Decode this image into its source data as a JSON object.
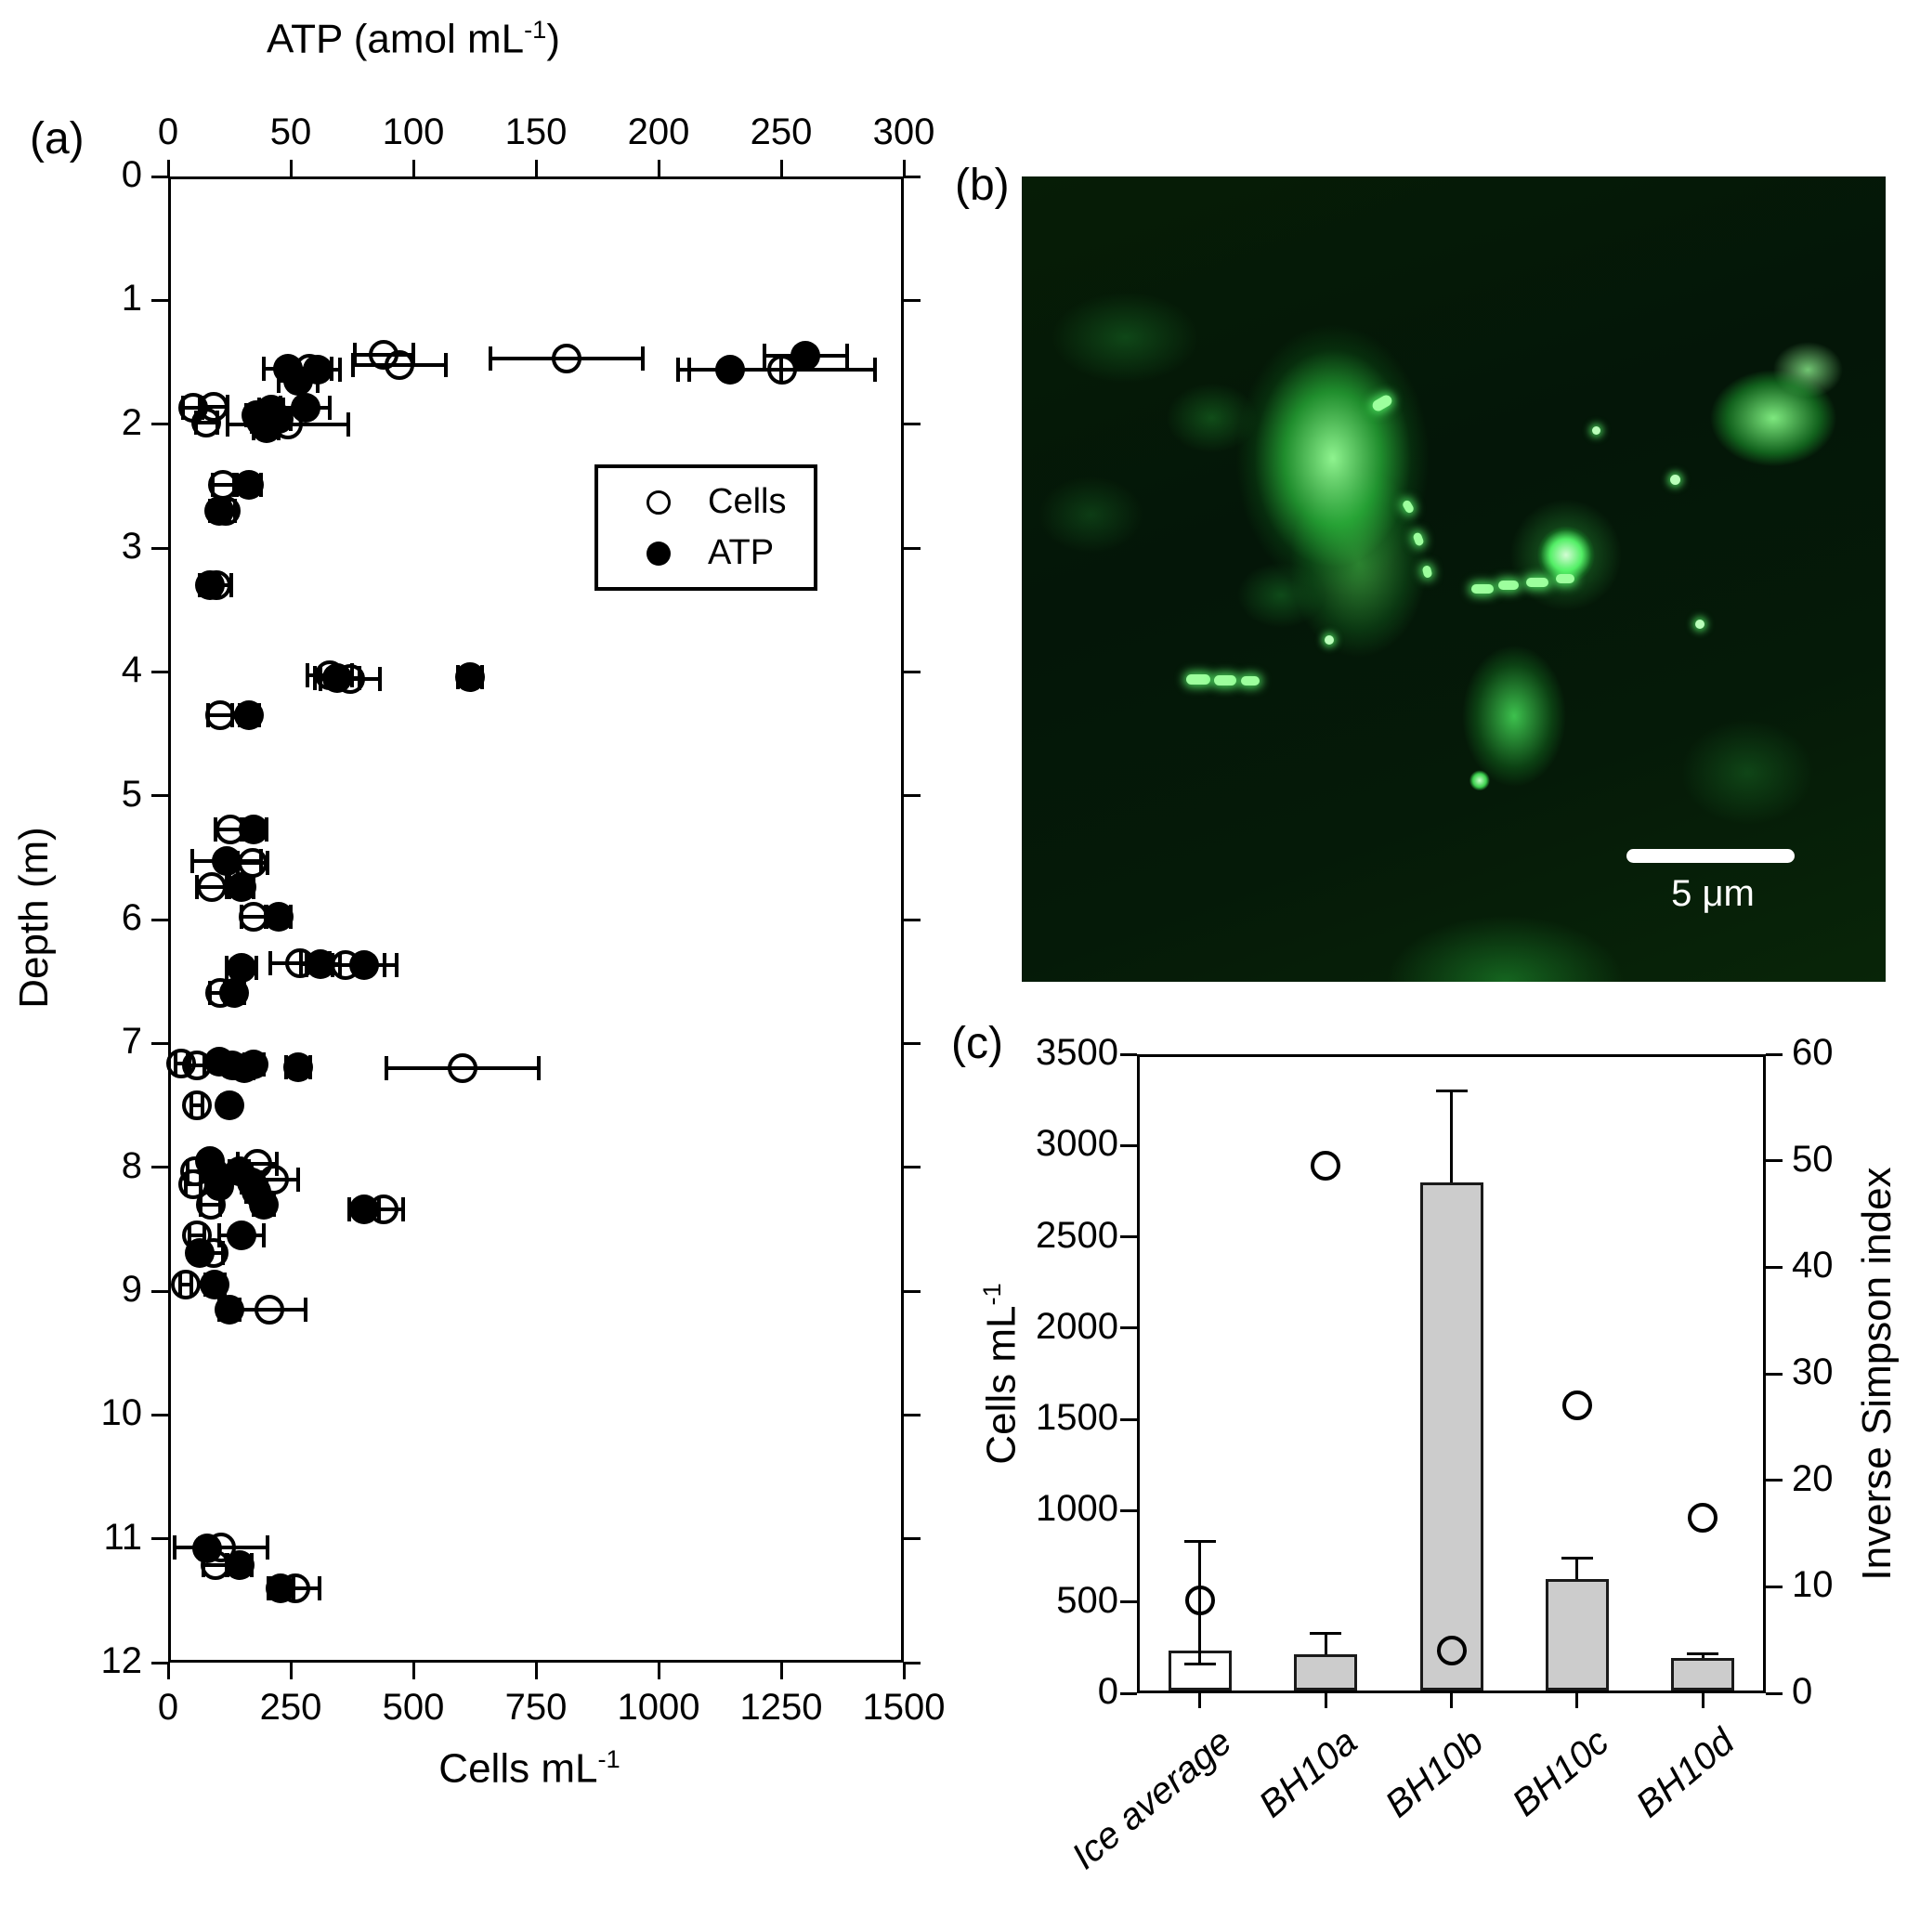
{
  "figure": {
    "panel_a": {
      "label": "(a)",
      "axis_top": {
        "pre": "ATP (amol mL",
        "sup": "-1",
        "post": ")"
      },
      "axis_bottom": {
        "pre": "Cells mL",
        "sup": "-1",
        "post": ""
      },
      "y_axis_title": "Depth (m)",
      "legend": [
        {
          "label": "Cells",
          "marker": "open-circle"
        },
        {
          "label": "ATP",
          "marker": "filled-circle"
        }
      ]
    },
    "panel_b": {
      "label": "(b)",
      "scale_bar_label": "5 μm"
    },
    "panel_c": {
      "label": "(c)",
      "axis_left": {
        "pre": "Cells mL",
        "sup": "-1",
        "post": ""
      },
      "axis_right_title": "Inverse Simpson index"
    },
    "colors": {
      "marker": "#000000",
      "bar_fill_gray": "#cccccc",
      "bar_fill_white": "#ffffff",
      "micrograph_green": "#2de05a",
      "scale_bar": "#ffffff"
    }
  },
  "chart_data": [
    {
      "id": "depth_profile",
      "type": "scatter",
      "title": "",
      "x_top_label": "ATP (amol mL^-1)",
      "x_bottom_label": "Cells mL^-1",
      "ylabel": "Depth (m)",
      "x_top_range": [
        0,
        300
      ],
      "x_bottom_range": [
        0,
        1500
      ],
      "y_range": [
        0,
        12
      ],
      "y_inverted": true,
      "grid": false,
      "x_top_ticks": [
        0,
        50,
        100,
        150,
        200,
        250,
        300
      ],
      "x_bottom_ticks": [
        0,
        250,
        500,
        750,
        1000,
        1250,
        1500
      ],
      "y_ticks": [
        0,
        1,
        2,
        3,
        4,
        5,
        6,
        7,
        8,
        9,
        10,
        11,
        12
      ],
      "legend_position": "upper-right-inside",
      "series": [
        {
          "name": "Cells",
          "marker": "open-circle",
          "x_axis": "bottom",
          "units": "cells mL^-1",
          "points_note": "[depth_m, value, x_error_halfwidth]",
          "points": [
            [
              1.55,
              288,
              45
            ],
            [
              1.44,
              440,
              60
            ],
            [
              1.52,
              472,
              95
            ],
            [
              1.47,
              812,
              155
            ],
            [
              1.56,
              1252,
              190
            ],
            [
              1.87,
              51,
              20
            ],
            [
              1.86,
              93,
              28
            ],
            [
              1.99,
              78,
              22
            ],
            [
              2.0,
              244,
              123
            ],
            [
              2.49,
              112,
              22
            ],
            [
              2.7,
              117,
              20
            ],
            [
              3.3,
              98,
              30
            ],
            [
              4.03,
              330,
              45
            ],
            [
              4.06,
              371,
              60
            ],
            [
              4.35,
              106,
              25
            ],
            [
              5.27,
              127,
              30
            ],
            [
              5.54,
              172,
              30
            ],
            [
              5.74,
              89,
              30
            ],
            [
              5.98,
              174,
              25
            ],
            [
              6.35,
              269,
              60
            ],
            [
              6.37,
              362,
              80
            ],
            [
              6.59,
              106,
              20
            ],
            [
              7.16,
              27,
              12
            ],
            [
              7.18,
              59,
              15
            ],
            [
              7.2,
              600,
              155
            ],
            [
              7.5,
              59,
              12
            ],
            [
              7.97,
              182,
              40
            ],
            [
              8.03,
              55,
              15
            ],
            [
              8.1,
              216,
              50
            ],
            [
              8.14,
              51,
              15
            ],
            [
              8.3,
              87,
              20
            ],
            [
              8.34,
              439,
              40
            ],
            [
              8.55,
              59,
              15
            ],
            [
              8.69,
              93,
              18
            ],
            [
              8.95,
              36,
              12
            ],
            [
              9.15,
              206,
              75
            ],
            [
              11.07,
              108,
              95
            ],
            [
              11.21,
              97,
              25
            ],
            [
              11.4,
              259,
              50
            ]
          ]
        },
        {
          "name": "ATP",
          "marker": "filled-circle",
          "x_axis": "top",
          "units": "amol mL^-1",
          "points_note": "[depth_m, value, x_error_halfwidth]",
          "points": [
            [
              1.55,
              49,
              10
            ],
            [
              1.65,
              53,
              8
            ],
            [
              1.56,
              61,
              9
            ],
            [
              1.56,
              229,
              21
            ],
            [
              1.45,
              260,
              17
            ],
            [
              1.93,
              36,
              4
            ],
            [
              1.98,
              38,
              4
            ],
            [
              2.03,
              40,
              5
            ],
            [
              1.88,
              42,
              5
            ],
            [
              1.96,
              45,
              5
            ],
            [
              1.87,
              56,
              10
            ],
            [
              2.49,
              33,
              5
            ],
            [
              2.7,
              21,
              4
            ],
            [
              3.3,
              17,
              4
            ],
            [
              4.05,
              69,
              9
            ],
            [
              4.04,
              123,
              5
            ],
            [
              4.35,
              33,
              4
            ],
            [
              5.27,
              35,
              5
            ],
            [
              5.53,
              24,
              14
            ],
            [
              5.74,
              30,
              5
            ],
            [
              5.98,
              45,
              5
            ],
            [
              6.39,
              30,
              6
            ],
            [
              6.36,
              62,
              8
            ],
            [
              6.37,
              80,
              13
            ],
            [
              6.59,
              27,
              4
            ],
            [
              7.15,
              21,
              3
            ],
            [
              7.18,
              26,
              3
            ],
            [
              7.2,
              31,
              4
            ],
            [
              7.17,
              35,
              4
            ],
            [
              7.19,
              53,
              5
            ],
            [
              7.5,
              25,
              3
            ],
            [
              7.95,
              17,
              2
            ],
            [
              8.05,
              19,
              2
            ],
            [
              8.15,
              21,
              3
            ],
            [
              8.03,
              29,
              4
            ],
            [
              8.12,
              34,
              4
            ],
            [
              8.2,
              36,
              4
            ],
            [
              8.3,
              39,
              4
            ],
            [
              8.34,
              80,
              6
            ],
            [
              8.55,
              30,
              9
            ],
            [
              8.69,
              13,
              2
            ],
            [
              8.95,
              19,
              4
            ],
            [
              9.15,
              25,
              4
            ],
            [
              11.08,
              16,
              3
            ],
            [
              11.21,
              29,
              5
            ],
            [
              11.4,
              46,
              5
            ]
          ]
        }
      ]
    },
    {
      "id": "borehole_summary",
      "type": "bar",
      "categories": [
        "Ice average",
        "BH10a",
        "BH10b",
        "BH10c",
        "BH10d"
      ],
      "bar_values": [
        235,
        215,
        2800,
        625,
        195
      ],
      "bar_err_plus": [
        595,
        115,
        500,
        115,
        23
      ],
      "bar_err_minus": [
        75,
        0,
        0,
        0,
        0
      ],
      "bar_fills": [
        "#ffffff",
        "#cccccc",
        "#cccccc",
        "#cccccc",
        "#cccccc"
      ],
      "circle_series_name": "Inverse Simpson index",
      "circle_values": [
        8.7,
        49.5,
        4.0,
        27.0,
        16.5
      ],
      "ylabel_left": "Cells mL^-1",
      "ylabel_right": "Inverse Simpson index",
      "ylim_left": [
        0,
        3500
      ],
      "ylim_right": [
        0,
        60
      ],
      "yticks_left": [
        0,
        500,
        1000,
        1500,
        2000,
        2500,
        3000,
        3500
      ],
      "yticks_right": [
        0,
        10,
        20,
        30,
        40,
        50,
        60
      ],
      "grid": false
    }
  ]
}
